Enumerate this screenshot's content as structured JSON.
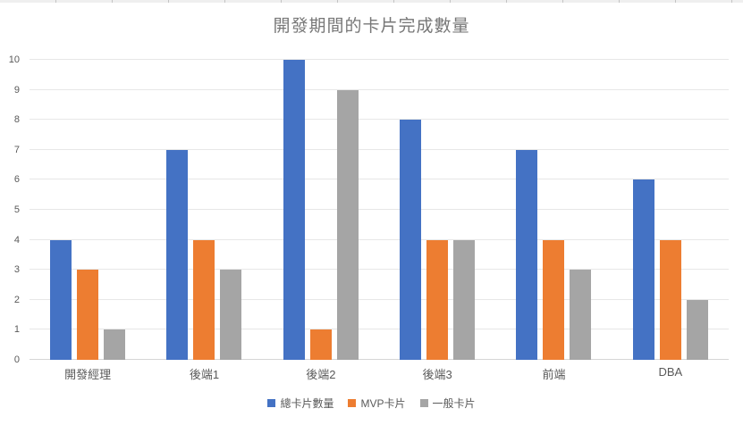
{
  "chart_data": {
    "type": "bar",
    "title": "開發期間的卡片完成數量",
    "categories": [
      "開發經理",
      "後端1",
      "後端2",
      "後端3",
      "前端",
      "DBA"
    ],
    "series": [
      {
        "name": "總卡片數量",
        "color": "#4472C4",
        "values": [
          4,
          7,
          10,
          8,
          7,
          6
        ]
      },
      {
        "name": "MVP卡片",
        "color": "#ED7D31",
        "values": [
          3,
          4,
          1,
          4,
          4,
          4
        ]
      },
      {
        "name": "一般卡片",
        "color": "#A5A5A5",
        "values": [
          1,
          3,
          9,
          4,
          3,
          2
        ]
      }
    ],
    "xlabel": "",
    "ylabel": "",
    "ylim": [
      0,
      10
    ],
    "yticks": [
      0,
      1,
      2,
      3,
      4,
      5,
      6,
      7,
      8,
      9,
      10
    ],
    "grid": "horizontal",
    "legend_position": "bottom",
    "colors": {
      "title_text": "#777777",
      "axis_text": "#595959",
      "gridline": "#E7E7E7",
      "axis_line": "#D5D5D5",
      "background": "#FFFFFF"
    }
  }
}
